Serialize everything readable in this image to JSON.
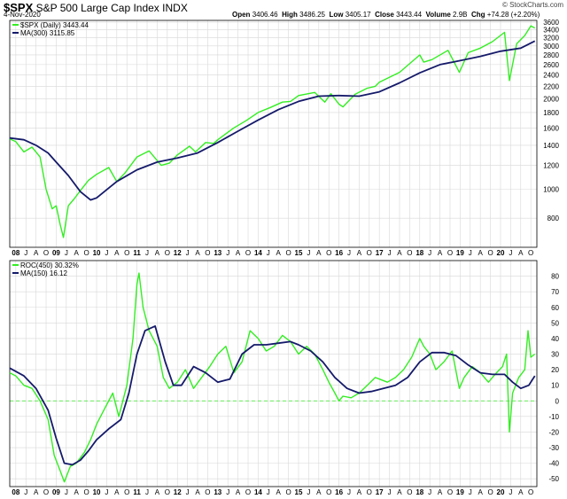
{
  "header": {
    "symbol": "$SPX",
    "name": "S&P 500 Large Cap Index",
    "exchange": "INDX",
    "date": "4-Nov-2020",
    "open_label": "Open",
    "open": "3406.46",
    "high_label": "High",
    "high": "3486.25",
    "low_label": "Low",
    "low": "3405.17",
    "close_label": "Close",
    "close": "3443.44",
    "volume_label": "Volume",
    "volume": "2.9B",
    "chg_label": "Chg",
    "chg": "+74.28 (+2.20%)",
    "watermark": "© StockCharts.com"
  },
  "colors": {
    "price": "#33ee22",
    "ma": "#151a6a",
    "grid": "#d8d8d8",
    "zero": "#33ee22"
  },
  "chart_data": [
    {
      "type": "line",
      "scale": "log",
      "legend_placement": "top-left",
      "legend": [
        {
          "label": "$SPX (Daily) 3443.44",
          "color": "#33ee22"
        },
        {
          "label": "MA(300) 3115.85",
          "color": "#151a6a"
        }
      ],
      "ylim": [
        640,
        3650
      ],
      "yticks": [
        800,
        1000,
        1200,
        1400,
        1600,
        1800,
        2000,
        2200,
        2400,
        2600,
        2800,
        3000,
        3200,
        3400,
        3600
      ],
      "ytick_labels": [
        "800",
        "1000",
        "1200",
        "1400",
        "1600",
        "1800",
        "2000",
        "2200",
        "2400",
        "2600",
        "2800",
        "3000",
        "3200",
        "3400",
        "3600"
      ],
      "grid": true,
      "series": [
        {
          "role": "price",
          "x": [
            2007.85,
            2008.0,
            2008.2,
            2008.4,
            2008.6,
            2008.75,
            2008.9,
            2009.0,
            2009.1,
            2009.18,
            2009.3,
            2009.45,
            2009.6,
            2009.8,
            2010.0,
            2010.3,
            2010.5,
            2010.7,
            2011.0,
            2011.3,
            2011.6,
            2011.8,
            2012.0,
            2012.3,
            2012.45,
            2012.7,
            2012.9,
            2013.0,
            2013.4,
            2013.7,
            2014.0,
            2014.3,
            2014.6,
            2014.8,
            2015.0,
            2015.4,
            2015.65,
            2015.8,
            2016.0,
            2016.1,
            2016.4,
            2016.7,
            2016.9,
            2017.0,
            2017.5,
            2018.0,
            2018.1,
            2018.3,
            2018.7,
            2018.98,
            2019.2,
            2019.5,
            2019.8,
            2020.1,
            2020.22,
            2020.4,
            2020.6,
            2020.75,
            2020.85
          ],
          "y": [
            1470,
            1440,
            1330,
            1380,
            1280,
            1000,
            860,
            880,
            760,
            690,
            880,
            930,
            990,
            1070,
            1120,
            1180,
            1060,
            1130,
            1280,
            1340,
            1200,
            1220,
            1300,
            1390,
            1330,
            1430,
            1420,
            1460,
            1600,
            1690,
            1800,
            1870,
            1950,
            1960,
            2050,
            2100,
            1950,
            2080,
            1920,
            1880,
            2070,
            2170,
            2200,
            2270,
            2450,
            2800,
            2650,
            2700,
            2900,
            2450,
            2850,
            2950,
            3100,
            3330,
            2300,
            3050,
            3250,
            3500,
            3443
          ]
        },
        {
          "role": "ma",
          "x": [
            2007.85,
            2008.2,
            2008.5,
            2008.8,
            2009.0,
            2009.3,
            2009.6,
            2009.85,
            2010.0,
            2010.5,
            2011.0,
            2011.5,
            2012.0,
            2012.5,
            2013.0,
            2013.5,
            2014.0,
            2014.5,
            2015.0,
            2015.5,
            2016.0,
            2016.5,
            2017.0,
            2017.5,
            2018.0,
            2018.5,
            2019.0,
            2019.5,
            2020.0,
            2020.5,
            2020.85
          ],
          "y": [
            1480,
            1460,
            1400,
            1320,
            1230,
            1110,
            980,
            920,
            935,
            1060,
            1160,
            1230,
            1270,
            1320,
            1430,
            1560,
            1700,
            1840,
            1960,
            2040,
            2050,
            2040,
            2110,
            2260,
            2440,
            2600,
            2680,
            2770,
            2880,
            2950,
            3116
          ]
        }
      ]
    },
    {
      "type": "line",
      "legend_placement": "top-left",
      "legend": [
        {
          "label": "ROC(450) 30.32%",
          "color": "#33ee22"
        },
        {
          "label": "MA(150) 16.12",
          "color": "#151a6a"
        }
      ],
      "ylim": [
        -55,
        90
      ],
      "yticks": [
        -50,
        -40,
        -30,
        -20,
        -10,
        0,
        10,
        20,
        30,
        40,
        50,
        60,
        70,
        80
      ],
      "ytick_labels": [
        "-50",
        "-40",
        "-30",
        "-20",
        "-10",
        "0",
        "10",
        "20",
        "30",
        "40",
        "50",
        "60",
        "70",
        "80"
      ],
      "reference_line": 0,
      "grid": true,
      "series": [
        {
          "role": "roc",
          "x": [
            2007.85,
            2008.0,
            2008.2,
            2008.4,
            2008.6,
            2008.8,
            2008.95,
            2009.1,
            2009.2,
            2009.35,
            2009.5,
            2009.7,
            2009.85,
            2010.0,
            2010.2,
            2010.4,
            2010.55,
            2010.75,
            2010.9,
            2011.0,
            2011.05,
            2011.15,
            2011.3,
            2011.5,
            2011.65,
            2011.8,
            2012.0,
            2012.2,
            2012.4,
            2012.6,
            2012.8,
            2013.0,
            2013.2,
            2013.4,
            2013.6,
            2013.8,
            2014.0,
            2014.2,
            2014.4,
            2014.6,
            2014.8,
            2015.0,
            2015.2,
            2015.4,
            2015.6,
            2015.75,
            2015.9,
            2016.0,
            2016.1,
            2016.3,
            2016.5,
            2016.7,
            2016.9,
            2017.0,
            2017.2,
            2017.4,
            2017.6,
            2017.8,
            2018.0,
            2018.1,
            2018.25,
            2018.4,
            2018.6,
            2018.8,
            2018.98,
            2019.1,
            2019.3,
            2019.5,
            2019.7,
            2019.9,
            2020.05,
            2020.15,
            2020.22,
            2020.3,
            2020.45,
            2020.6,
            2020.68,
            2020.75,
            2020.85
          ],
          "y": [
            18,
            16,
            10,
            8,
            0,
            -12,
            -35,
            -45,
            -52,
            -42,
            -40,
            -33,
            -25,
            -15,
            -5,
            5,
            -10,
            10,
            40,
            75,
            82,
            60,
            45,
            35,
            15,
            8,
            12,
            20,
            8,
            15,
            22,
            30,
            35,
            18,
            25,
            45,
            40,
            32,
            35,
            42,
            38,
            30,
            35,
            30,
            20,
            12,
            5,
            0,
            3,
            2,
            5,
            10,
            15,
            14,
            12,
            15,
            20,
            28,
            40,
            35,
            30,
            20,
            25,
            32,
            8,
            15,
            22,
            18,
            12,
            18,
            22,
            30,
            -20,
            5,
            15,
            20,
            45,
            28,
            30
          ]
        },
        {
          "role": "ma",
          "x": [
            2007.85,
            2008.2,
            2008.5,
            2008.8,
            2009.0,
            2009.2,
            2009.4,
            2009.6,
            2009.8,
            2010.0,
            2010.3,
            2010.6,
            2010.8,
            2011.0,
            2011.2,
            2011.45,
            2011.7,
            2011.9,
            2012.1,
            2012.4,
            2012.7,
            2013.0,
            2013.3,
            2013.6,
            2013.9,
            2014.2,
            2014.5,
            2014.8,
            2015.0,
            2015.3,
            2015.6,
            2015.9,
            2016.2,
            2016.5,
            2016.8,
            2017.1,
            2017.4,
            2017.7,
            2018.0,
            2018.3,
            2018.6,
            2018.9,
            2019.2,
            2019.5,
            2019.8,
            2020.1,
            2020.3,
            2020.5,
            2020.7,
            2020.85
          ],
          "y": [
            21,
            16,
            8,
            -6,
            -24,
            -40,
            -41,
            -38,
            -32,
            -25,
            -18,
            -12,
            5,
            30,
            45,
            48,
            25,
            10,
            10,
            22,
            18,
            12,
            14,
            30,
            36,
            36,
            37,
            38,
            36,
            32,
            25,
            15,
            8,
            5,
            6,
            8,
            10,
            15,
            25,
            31,
            31,
            29,
            23,
            18,
            17,
            17,
            12,
            8,
            10,
            16
          ]
        }
      ]
    }
  ],
  "x_axis": {
    "years": [
      {
        "t": 2008,
        "label": "08"
      },
      {
        "t": 2009,
        "label": "09"
      },
      {
        "t": 2010,
        "label": "10"
      },
      {
        "t": 2011,
        "label": "11"
      },
      {
        "t": 2012,
        "label": "12"
      },
      {
        "t": 2013,
        "label": "13"
      },
      {
        "t": 2014,
        "label": "14"
      },
      {
        "t": 2015,
        "label": "15"
      },
      {
        "t": 2016,
        "label": "16"
      },
      {
        "t": 2017,
        "label": "17"
      },
      {
        "t": 2018,
        "label": "18"
      },
      {
        "t": 2019,
        "label": "19"
      },
      {
        "t": 2020,
        "label": "20"
      }
    ],
    "minor_labels": [
      "A",
      "J",
      "A",
      "O"
    ],
    "range": [
      2007.85,
      2020.9
    ]
  }
}
